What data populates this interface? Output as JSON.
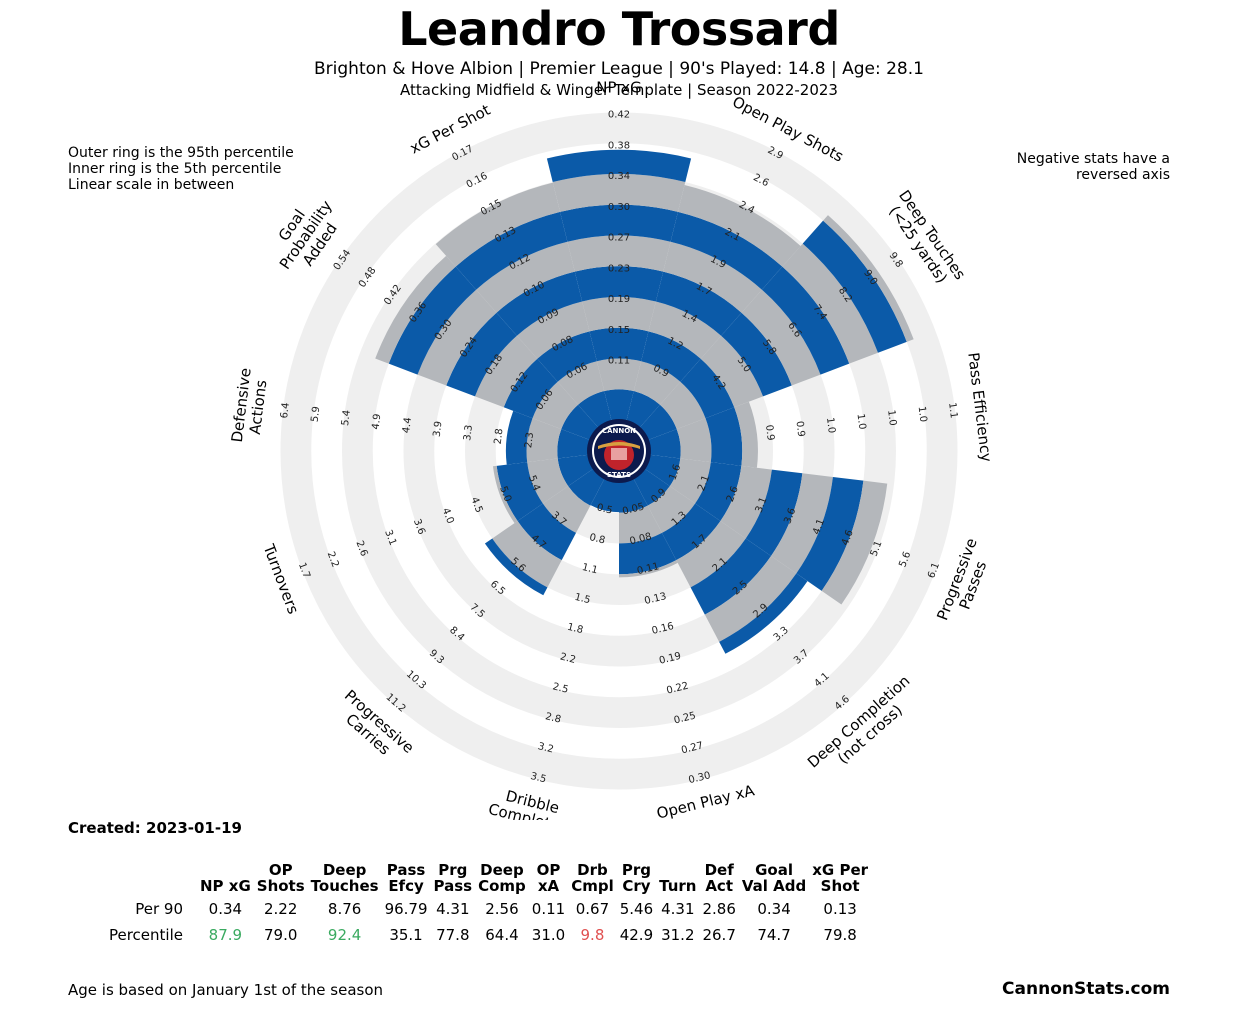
{
  "header": {
    "title": "Leandro Trossard",
    "subtitle1": "Brighton & Hove Albion  | Premier League | 90's Played: 14.8 | Age: 28.1",
    "subtitle2": "Attacking Midfield & Winger Template | Season 2022-2023"
  },
  "notes": {
    "left": [
      "Outer ring is the 95th percentile",
      "Inner ring is the 5th percentile",
      "Linear scale in between"
    ],
    "right": [
      "Negative stats have a",
      "reversed axis"
    ]
  },
  "logo": {
    "line1": "CANNON",
    "line2": "STATS"
  },
  "colors": {
    "blue": "#0b5aa8",
    "gray_fill": "#b4b7bb",
    "ring_light": "#efefef",
    "good": "#3aaa60",
    "bad": "#e05050"
  },
  "chart_data": {
    "type": "radar",
    "ring_range": "5th to 95th percentile",
    "axes": [
      {
        "label": [
          "NP xG"
        ],
        "percentile": 87.9,
        "ticks": [
          "0.11",
          "0.15",
          "0.19",
          "0.23",
          "0.27",
          "0.30",
          "0.34",
          "0.38",
          "0.42"
        ]
      },
      {
        "label": [
          "Open Play Shots"
        ],
        "percentile": 79.0,
        "ticks": [
          "0.9",
          "1.2",
          "1.4",
          "1.7",
          "1.9",
          "2.1",
          "2.4",
          "2.6",
          "2.9"
        ]
      },
      {
        "label": [
          "Deep Touches",
          "(<25 yards)"
        ],
        "percentile": 92.4,
        "ticks": [
          "4.2",
          "5.0",
          "5.8",
          "6.6",
          "7.4",
          "8.2",
          "9.0",
          "9.8"
        ]
      },
      {
        "label": [
          "Pass Efficiency"
        ],
        "percentile": 35.1,
        "ticks": [
          "0.9",
          "0.9",
          "1.0",
          "1.0",
          "1.0",
          "1.0",
          "1.1"
        ]
      },
      {
        "label": [
          "Progressive",
          "Passes"
        ],
        "percentile": 77.8,
        "ticks": [
          "1.6",
          "2.1",
          "2.6",
          "3.1",
          "3.6",
          "4.1",
          "4.6",
          "5.1",
          "5.6",
          "6.1"
        ]
      },
      {
        "label": [
          "Deep Completion",
          "(not cross)"
        ],
        "percentile": 64.4,
        "ticks": [
          "0.9",
          "1.3",
          "1.7",
          "2.1",
          "2.5",
          "2.9",
          "3.3",
          "3.7",
          "4.1",
          "4.6"
        ]
      },
      {
        "label": [
          "Open Play xA"
        ],
        "percentile": 31.0,
        "ticks": [
          "0.05",
          "0.08",
          "0.11",
          "0.13",
          "0.16",
          "0.19",
          "0.22",
          "0.25",
          "0.27",
          "0.30"
        ]
      },
      {
        "label": [
          "Dribble",
          "Completed"
        ],
        "percentile": 9.8,
        "ticks": [
          "0.5",
          "0.8",
          "1.1",
          "1.5",
          "1.8",
          "2.2",
          "2.5",
          "2.8",
          "3.2",
          "3.5"
        ]
      },
      {
        "label": [
          "Progressive",
          "Carries"
        ],
        "percentile": 42.9,
        "ticks": [
          "3.7",
          "4.7",
          "5.6",
          "6.5",
          "7.5",
          "8.4",
          "9.3",
          "10.3",
          "11.2"
        ]
      },
      {
        "label": [
          "Turnovers"
        ],
        "percentile": 31.2,
        "ticks": [
          "5.4",
          "5.0",
          "4.5",
          "4.0",
          "3.6",
          "3.1",
          "2.6",
          "2.2",
          "1.7"
        ]
      },
      {
        "label": [
          "Defensive",
          "Actions"
        ],
        "percentile": 26.7,
        "ticks": [
          "2.3",
          "2.8",
          "3.3",
          "3.9",
          "4.4",
          "4.9",
          "5.4",
          "5.9",
          "6.4"
        ]
      },
      {
        "label": [
          "Goal",
          "Probability",
          "Added"
        ],
        "percentile": 74.7,
        "ticks": [
          "0.06",
          "0.12",
          "0.18",
          "0.24",
          "0.30",
          "0.36",
          "0.42",
          "0.48",
          "0.54"
        ]
      },
      {
        "label": [
          "xG Per Shot"
        ],
        "percentile": 79.8,
        "ticks": [
          "0.06",
          "0.08",
          "0.09",
          "0.10",
          "0.12",
          "0.13",
          "0.15",
          "0.16",
          "0.17"
        ]
      }
    ]
  },
  "created": "Created: 2023-01-19",
  "table": {
    "headers": [
      [
        "NP xG"
      ],
      [
        "OP",
        "Shots"
      ],
      [
        "Deep",
        "Touches"
      ],
      [
        "Pass",
        "Efcy"
      ],
      [
        "Prg",
        "Pass"
      ],
      [
        "Deep",
        "Comp"
      ],
      [
        "OP",
        "xA"
      ],
      [
        "Drb",
        "Cmpl"
      ],
      [
        "Prg",
        "Cry"
      ],
      [
        "Turn"
      ],
      [
        "Def",
        "Act"
      ],
      [
        "Goal",
        "Val Add"
      ],
      [
        "xG Per",
        "Shot"
      ]
    ],
    "per90_label": "Per 90",
    "per90": [
      "0.34",
      "2.22",
      "8.76",
      "96.79",
      "4.31",
      "2.56",
      "0.11",
      "0.67",
      "5.46",
      "4.31",
      "2.86",
      "0.34",
      "0.13"
    ],
    "percentile_label": "Percentile",
    "percentile": [
      "87.9",
      "79.0",
      "92.4",
      "35.1",
      "77.8",
      "64.4",
      "31.0",
      "9.8",
      "42.9",
      "31.2",
      "26.7",
      "74.7",
      "79.8"
    ],
    "percentile_status": [
      "good",
      "",
      "good",
      "",
      "",
      "",
      "",
      "bad",
      "",
      "",
      "",
      "",
      ""
    ]
  },
  "footer": {
    "note": "Age is based on January 1st of the season",
    "brand": "CannonStats.com"
  }
}
